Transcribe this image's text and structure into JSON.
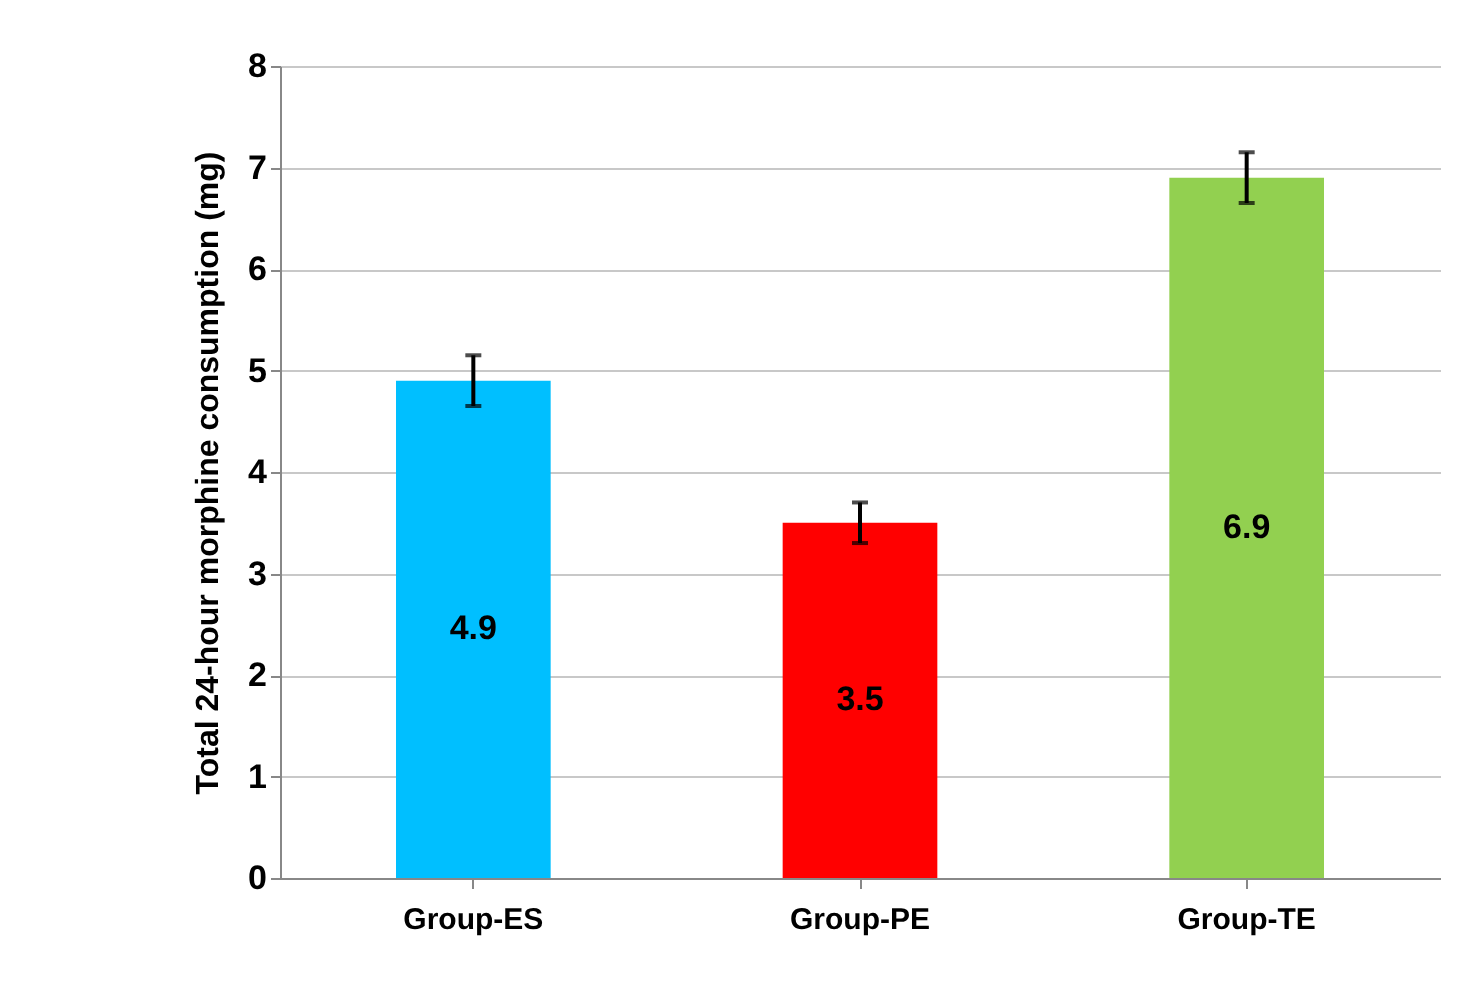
{
  "chart_data": {
    "type": "bar",
    "ylabel": "Total 24-hour morphine consumption (mg)",
    "categories": [
      "Group-ES",
      "Group-PE",
      "Group-TE"
    ],
    "values": [
      4.9,
      3.5,
      6.9
    ],
    "colors": [
      "#00bfff",
      "#ff0000",
      "#92d050"
    ],
    "errors": [
      0.25,
      0.2,
      0.25
    ],
    "ylim": [
      0,
      8
    ],
    "yticks": [
      0,
      1,
      2,
      3,
      4,
      5,
      6,
      7,
      8
    ],
    "grid": "y",
    "data_labels": true
  }
}
